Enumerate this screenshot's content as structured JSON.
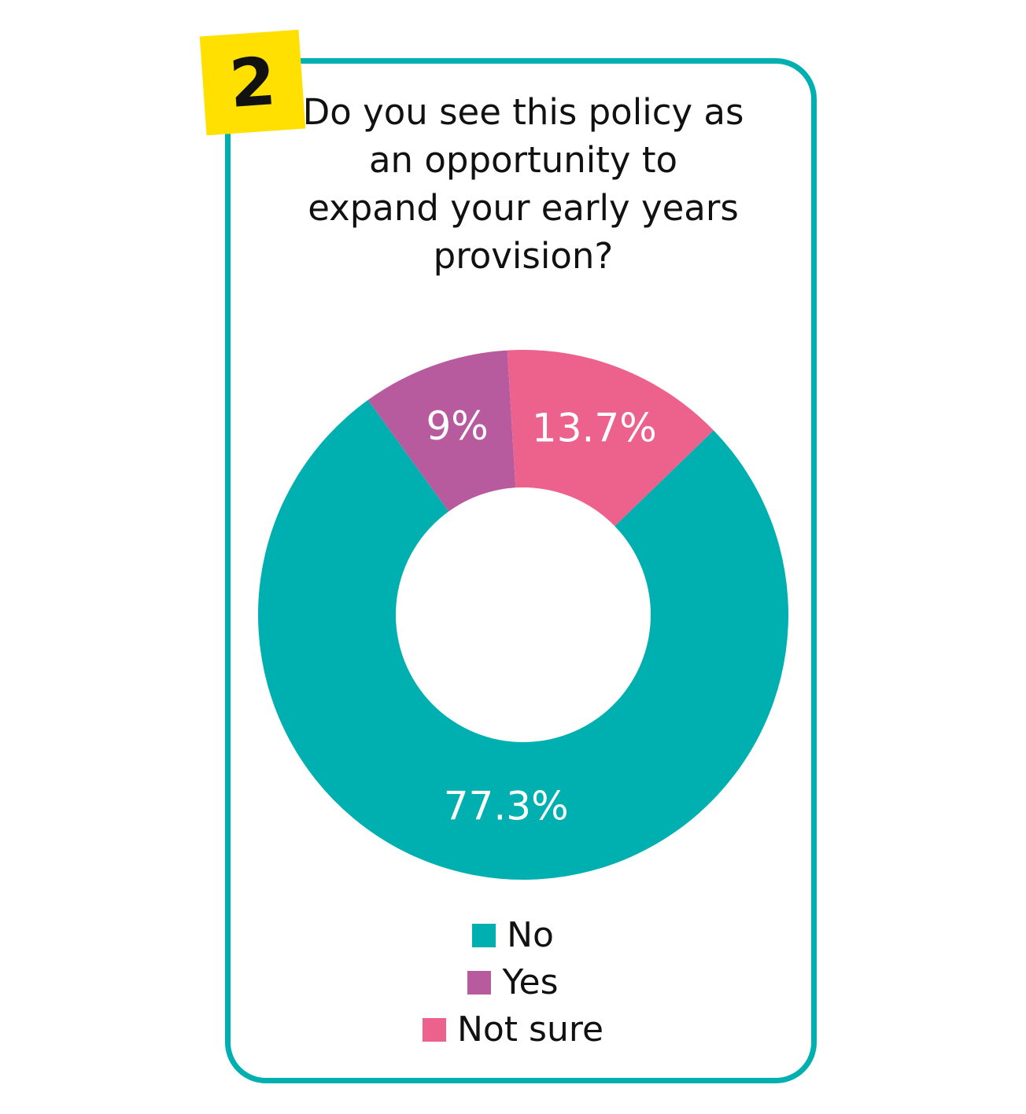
{
  "badge": {
    "number": "2",
    "color": "#ffe000"
  },
  "frame_color": "#00b0b0",
  "chart_data": {
    "type": "pie",
    "title": "Do you see this policy as an opportunity to expand your early years provision?",
    "categories": [
      "No",
      "Yes",
      "Not sure"
    ],
    "values": [
      77.3,
      9,
      13.7
    ],
    "labels": [
      "77.3%",
      "9%",
      "13.7%"
    ],
    "colors": [
      "#00b0b0",
      "#b85b9e",
      "#ec628c"
    ],
    "legend": "bottom",
    "donut": true
  }
}
